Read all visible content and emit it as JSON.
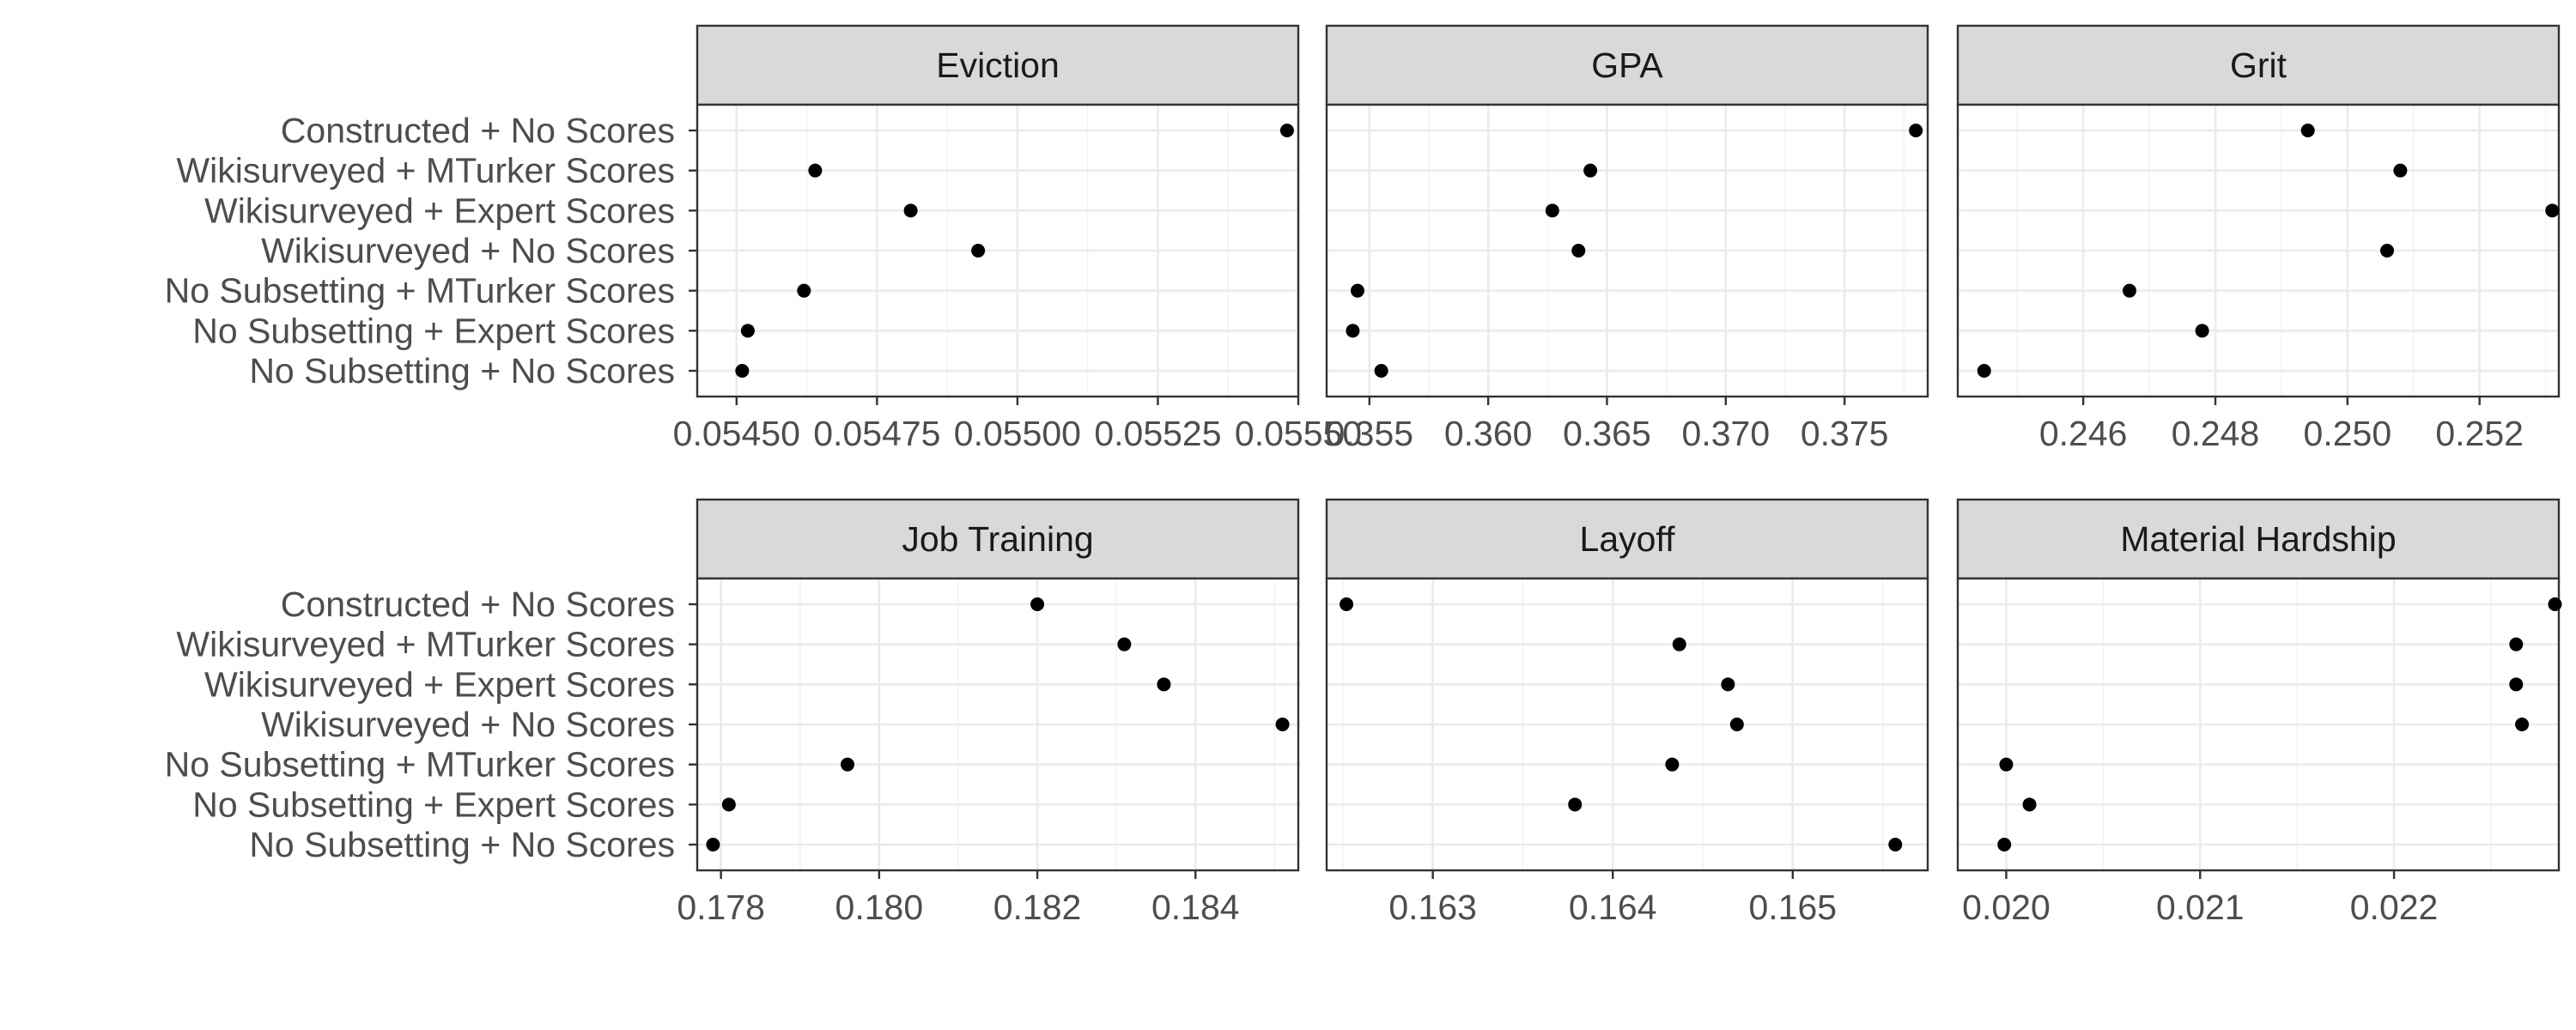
{
  "chart_data": {
    "type": "scatter",
    "layout": "facet grid, 2 rows x 3 columns, free x scales, shared y categories",
    "theme": "black-and-white with light grey grid",
    "grid": true,
    "point_color": "#000000",
    "categories": [
      "No Subsetting + No Scores",
      "No Subsetting + Expert Scores",
      "No Subsetting + MTurker Scores",
      "Wikisurveyed + No Scores",
      "Wikisurveyed + Expert Scores",
      "Wikisurveyed + MTurker Scores",
      "Constructed + No Scores"
    ],
    "panels": [
      {
        "title": "Eviction",
        "xlim": [
          0.05443,
          0.0555
        ],
        "xticks": [
          0.0545,
          0.05475,
          0.055,
          0.05525,
          0.0555
        ],
        "xticklabels": [
          "0.05450",
          "0.05475",
          "0.05500",
          "0.05525",
          "0.05550"
        ],
        "values": [
          0.05451,
          0.05452,
          0.05462,
          0.05493,
          0.05481,
          0.05464,
          0.05548
        ]
      },
      {
        "title": "GPA",
        "xlim": [
          0.3532,
          0.3785
        ],
        "xticks": [
          0.355,
          0.36,
          0.365,
          0.37,
          0.375
        ],
        "xticklabels": [
          "0.355",
          "0.360",
          "0.365",
          "0.370",
          "0.375"
        ],
        "values": [
          0.3555,
          0.3543,
          0.3545,
          0.3638,
          0.3627,
          0.3643,
          0.378
        ]
      },
      {
        "title": "Grit",
        "xlim": [
          0.2441,
          0.2532
        ],
        "xticks": [
          0.246,
          0.248,
          0.25,
          0.252
        ],
        "xticklabels": [
          "0.246",
          "0.248",
          "0.250",
          "0.252"
        ],
        "values": [
          0.2445,
          0.2478,
          0.2467,
          0.2506,
          0.2531,
          0.2508,
          0.2494
        ]
      },
      {
        "title": "Job Training",
        "xlim": [
          0.1777,
          0.1853
        ],
        "xticks": [
          0.178,
          0.18,
          0.182,
          0.184
        ],
        "xticklabels": [
          "0.178",
          "0.180",
          "0.182",
          "0.184"
        ],
        "values": [
          0.1779,
          0.1781,
          0.1796,
          0.1851,
          0.1836,
          0.1831,
          0.182
        ]
      },
      {
        "title": "Layoff",
        "xlim": [
          0.16241,
          0.16575
        ],
        "xticks": [
          0.163,
          0.164,
          0.165
        ],
        "xticklabels": [
          "0.163",
          "0.164",
          "0.165"
        ],
        "values": [
          0.16557,
          0.16379,
          0.16433,
          0.16469,
          0.16464,
          0.16437,
          0.16252
        ]
      },
      {
        "title": "Material Hardship",
        "xlim": [
          0.01975,
          0.02285
        ],
        "xticks": [
          0.02,
          0.021,
          0.022
        ],
        "xticklabels": [
          "0.020",
          "0.021",
          "0.022"
        ],
        "values": [
          0.01999,
          0.02012,
          0.02,
          0.02266,
          0.02263,
          0.02263,
          0.02283
        ]
      }
    ]
  }
}
